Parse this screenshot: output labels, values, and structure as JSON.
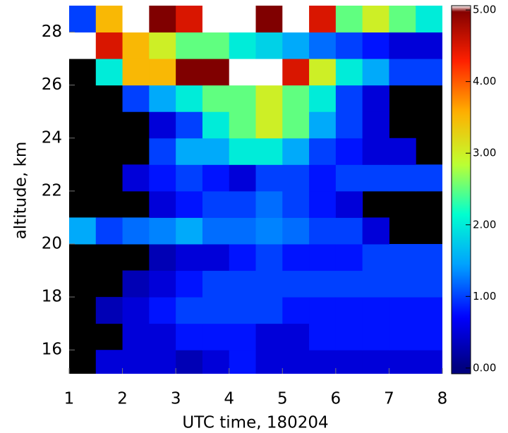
{
  "chart_data": {
    "type": "heatmap",
    "x_label": "UTC time, 180204",
    "y_label": "altitude, km",
    "x": [
      1.25,
      1.75,
      2.25,
      2.75,
      3.25,
      3.75,
      4.25,
      4.75,
      5.25,
      5.75,
      6.25,
      6.75,
      7.25,
      7.75
    ],
    "y": [
      15.5,
      16.5,
      17.5,
      18.5,
      19.5,
      20.5,
      21.5,
      22.5,
      23.5,
      24.5,
      25.5,
      26.5,
      27.5,
      28.5
    ],
    "z": [
      [
        null,
        0.5,
        0.5,
        0.5,
        0.3,
        0.5,
        0.8,
        0.5,
        0.5,
        0.5,
        0.5,
        0.5,
        0.5,
        0.5
      ],
      [
        null,
        null,
        0.5,
        0.5,
        0.8,
        0.8,
        0.8,
        0.5,
        0.5,
        0.8,
        0.8,
        0.8,
        0.8,
        0.8
      ],
      [
        null,
        0.3,
        0.5,
        0.8,
        1,
        1,
        1,
        1,
        0.8,
        0.8,
        0.8,
        0.8,
        0.8,
        0.8
      ],
      [
        null,
        null,
        0.3,
        0.5,
        0.8,
        1,
        1,
        1,
        1,
        1,
        1,
        1,
        1,
        1
      ],
      [
        null,
        null,
        null,
        0.3,
        0.5,
        0.5,
        0.8,
        1,
        0.8,
        0.8,
        0.8,
        1,
        1,
        1
      ],
      [
        1.5,
        1,
        1.2,
        1.3,
        1.5,
        1.2,
        1.2,
        1.3,
        1.2,
        1,
        1,
        0.5,
        null,
        null
      ],
      [
        null,
        null,
        null,
        0.5,
        0.8,
        1,
        1,
        1.2,
        1,
        0.8,
        0.5,
        null,
        null,
        null
      ],
      [
        null,
        null,
        0.5,
        0.8,
        1,
        0.8,
        0.5,
        1,
        1,
        0.8,
        1,
        1,
        1,
        1
      ],
      [
        null,
        null,
        null,
        1,
        1.5,
        1.5,
        2,
        2,
        1.5,
        1,
        0.8,
        0.5,
        0.5,
        null
      ],
      [
        null,
        null,
        null,
        0.5,
        1,
        2,
        2.5,
        3,
        2.5,
        1.5,
        1,
        0.5,
        null,
        null
      ],
      [
        null,
        null,
        1,
        1.5,
        2,
        2.5,
        2.5,
        3,
        2.5,
        2,
        1,
        0.5,
        null,
        null
      ],
      [
        null,
        2,
        3.5,
        3.5,
        5,
        5,
        5.5,
        6,
        4.5,
        3,
        2,
        1.5,
        1,
        1
      ],
      [
        6,
        4.5,
        3.5,
        3,
        2.5,
        2.5,
        2,
        1.8,
        1.5,
        1.2,
        1,
        0.8,
        0.5,
        0.5
      ],
      [
        1,
        3.5,
        5.5,
        5,
        4.5,
        5.5,
        6,
        5,
        6,
        4.5,
        2.5,
        3,
        2.5,
        2
      ]
    ],
    "xlim": [
      1,
      8
    ],
    "xticks": [
      1,
      2,
      3,
      4,
      5,
      6,
      7,
      8
    ],
    "ylim": [
      15.1,
      29
    ],
    "yticks": [
      16,
      18,
      20,
      22,
      24,
      26,
      28
    ],
    "clim": [
      0,
      5
    ],
    "colormap": [
      "#00007f",
      "#0000ff",
      "#00a0ff",
      "#00ffd0",
      "#c0ff30",
      "#ffb000",
      "#ff2000",
      "#800000"
    ],
    "over_color": "#ffffff",
    "missing_color": "#000000",
    "colorbar_lim": [
      -0.08,
      5.06
    ],
    "colorbar_ticks": [
      {
        "value": 0,
        "label": "0.00"
      },
      {
        "value": 1,
        "label": "1.00"
      },
      {
        "value": 2,
        "label": "2.00"
      },
      {
        "value": 3,
        "label": "3.00"
      },
      {
        "value": 4,
        "label": "4.00"
      },
      {
        "value": 5,
        "label": "5.00"
      }
    ]
  }
}
